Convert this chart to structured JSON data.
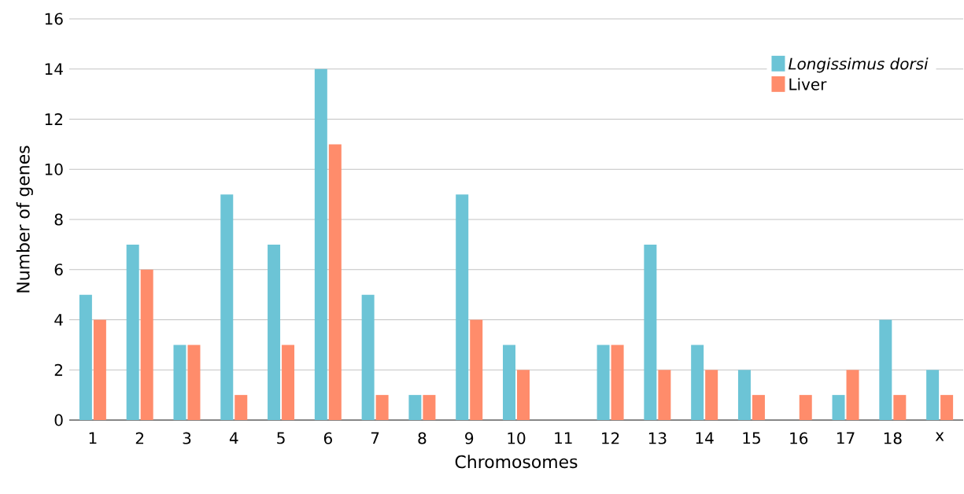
{
  "chart_data": {
    "type": "bar",
    "xlabel": "Chromosomes",
    "ylabel": "Number of genes",
    "categories": [
      "1",
      "2",
      "3",
      "4",
      "5",
      "6",
      "7",
      "8",
      "9",
      "10",
      "11",
      "12",
      "13",
      "14",
      "15",
      "16",
      "17",
      "18",
      "x"
    ],
    "series": [
      {
        "name": "*Longissimus dorsi*",
        "color": "#6cc4d6",
        "values": [
          5,
          7,
          3,
          9,
          7,
          14,
          5,
          1,
          9,
          3,
          0,
          3,
          7,
          3,
          2,
          0,
          1,
          4,
          2
        ]
      },
      {
        "name": "Liver",
        "color": "#ff8c6b",
        "values": [
          4,
          6,
          3,
          1,
          3,
          11,
          1,
          1,
          4,
          2,
          0,
          3,
          2,
          2,
          1,
          1,
          2,
          1,
          1
        ]
      }
    ],
    "ylim": [
      0,
      16
    ],
    "yticks": [
      0,
      2,
      4,
      6,
      8,
      10,
      12,
      14,
      16
    ],
    "grid": "y",
    "legend": "top right"
  }
}
